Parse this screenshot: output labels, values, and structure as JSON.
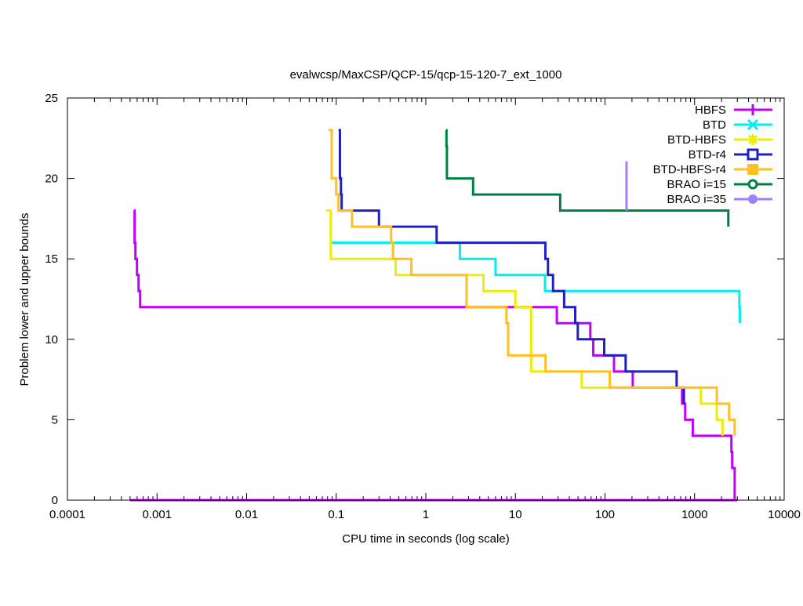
{
  "chart_data": {
    "type": "line",
    "step": true,
    "title": "evalwcsp/MaxCSP/QCP-15/qcp-15-120-7_ext_1000",
    "xlabel": "CPU time in seconds (log scale)",
    "ylabel": "Problem lower and upper bounds",
    "xscale": "log",
    "xlim": [
      0.0001,
      10000
    ],
    "ylim": [
      0,
      25
    ],
    "x_ticks": [
      "0.0001",
      "0.001",
      "0.01",
      "0.1",
      "1",
      "10",
      "100",
      "1000",
      "10000"
    ],
    "y_ticks": [
      "0",
      "5",
      "10",
      "15",
      "20",
      "25"
    ],
    "grid": false,
    "legend_position": "top-right",
    "series": [
      {
        "name": "HBFS",
        "color": "#c000ff",
        "marker": "plus",
        "points": [
          [
            0.00055,
            18
          ],
          [
            0.000562,
            16
          ],
          [
            0.000574,
            15
          ],
          [
            0.000597,
            14
          ],
          [
            0.000622,
            13
          ],
          [
            0.000648,
            12
          ],
          [
            29,
            11
          ],
          [
            68.6,
            10
          ],
          [
            74,
            9
          ],
          [
            126,
            8
          ],
          [
            204,
            7
          ],
          [
            725,
            6
          ],
          [
            785,
            5
          ],
          [
            955,
            4
          ],
          [
            2576,
            3
          ],
          [
            2630,
            2
          ],
          [
            2800,
            0
          ]
        ],
        "lower": [
          [
            0.0005,
            0
          ],
          [
            3000,
            0
          ]
        ]
      },
      {
        "name": "BTD",
        "color": "#00eeee",
        "marker": "cross",
        "points": [
          [
            0.09,
            16
          ],
          [
            2.4,
            15
          ],
          [
            6.0,
            14
          ],
          [
            21.4,
            13
          ],
          [
            3160,
            12
          ],
          [
            3200,
            11
          ]
        ]
      },
      {
        "name": "BTD-HBFS",
        "color": "#eeee00",
        "marker": "star",
        "points": [
          [
            0.077,
            18
          ],
          [
            0.087,
            15
          ],
          [
            0.46,
            14
          ],
          [
            4.4,
            13
          ],
          [
            10,
            12
          ],
          [
            15,
            8
          ],
          [
            55,
            7
          ],
          [
            1175,
            6
          ],
          [
            1770,
            5
          ],
          [
            2050,
            4
          ]
        ]
      },
      {
        "name": "BTD-r4",
        "color": "#2020c0",
        "marker": "box",
        "points": [
          [
            0.106,
            23
          ],
          [
            0.11,
            20
          ],
          [
            0.113,
            19
          ],
          [
            0.115,
            18
          ],
          [
            0.3,
            17
          ],
          [
            1.32,
            16
          ],
          [
            21.6,
            15
          ],
          [
            23.1,
            14
          ],
          [
            26.3,
            13
          ],
          [
            35,
            12
          ],
          [
            46.5,
            11
          ],
          [
            49.7,
            10
          ],
          [
            98,
            9
          ],
          [
            170,
            8
          ],
          [
            630,
            7
          ],
          [
            760,
            6
          ]
        ]
      },
      {
        "name": "BTD-HBFS-r4",
        "color": "#ffc020",
        "marker": "filled-box",
        "points": [
          [
            0.082,
            23
          ],
          [
            0.089,
            20
          ],
          [
            0.1,
            19
          ],
          [
            0.106,
            18
          ],
          [
            0.15,
            17
          ],
          [
            0.41,
            16
          ],
          [
            0.43,
            15
          ],
          [
            0.69,
            14
          ],
          [
            2.85,
            12
          ],
          [
            7.95,
            11
          ],
          [
            8.3,
            9
          ],
          [
            21.7,
            8
          ],
          [
            113,
            7
          ],
          [
            1770,
            6
          ],
          [
            2430,
            5
          ],
          [
            2800,
            4
          ]
        ]
      },
      {
        "name": "BRAO i=15",
        "color": "#008040",
        "marker": "circle",
        "points": [
          [
            1.68,
            23
          ],
          [
            1.7,
            22
          ],
          [
            1.72,
            20
          ],
          [
            3.37,
            19
          ],
          [
            31.6,
            18
          ],
          [
            2380,
            17
          ]
        ]
      },
      {
        "name": "BRAO i=35",
        "color": "#a080ff",
        "marker": "filled-circle",
        "points": [
          [
            170,
            21
          ],
          [
            174,
            19
          ],
          [
            174,
            18
          ]
        ]
      }
    ]
  }
}
